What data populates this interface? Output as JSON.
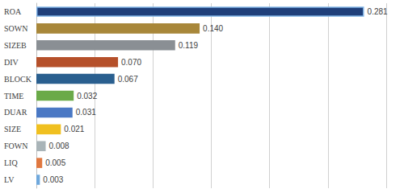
{
  "chart_data": {
    "type": "bar",
    "orientation": "horizontal",
    "categories": [
      "ROA",
      "SOWN",
      "SIZEB",
      "DIV",
      "BLOCK",
      "TIME",
      "DUAR",
      "SIZE",
      "FOWN",
      "LIQ",
      "LV"
    ],
    "values": [
      0.281,
      0.14,
      0.119,
      0.07,
      0.067,
      0.032,
      0.031,
      0.021,
      0.008,
      0.005,
      0.003
    ],
    "value_labels": [
      "0.281",
      "0.140",
      "0.119",
      "0.070",
      "0.067",
      "0.032",
      "0.031",
      "0.021",
      "0.008",
      "0.005",
      "0.003"
    ],
    "colors": [
      "#1f3f7a",
      "#a8873a",
      "#8a8f94",
      "#b5502a",
      "#2a5f8f",
      "#6aaa48",
      "#4a78c4",
      "#f0c020",
      "#a9b4b8",
      "#e07840",
      "#6fa8dc"
    ],
    "xlim": [
      0,
      0.3
    ],
    "xticks": [
      0,
      0.05,
      0.1,
      0.15,
      0.2,
      0.25,
      0.3
    ],
    "grid": true,
    "data_labels": true,
    "tick_labels": "y"
  }
}
